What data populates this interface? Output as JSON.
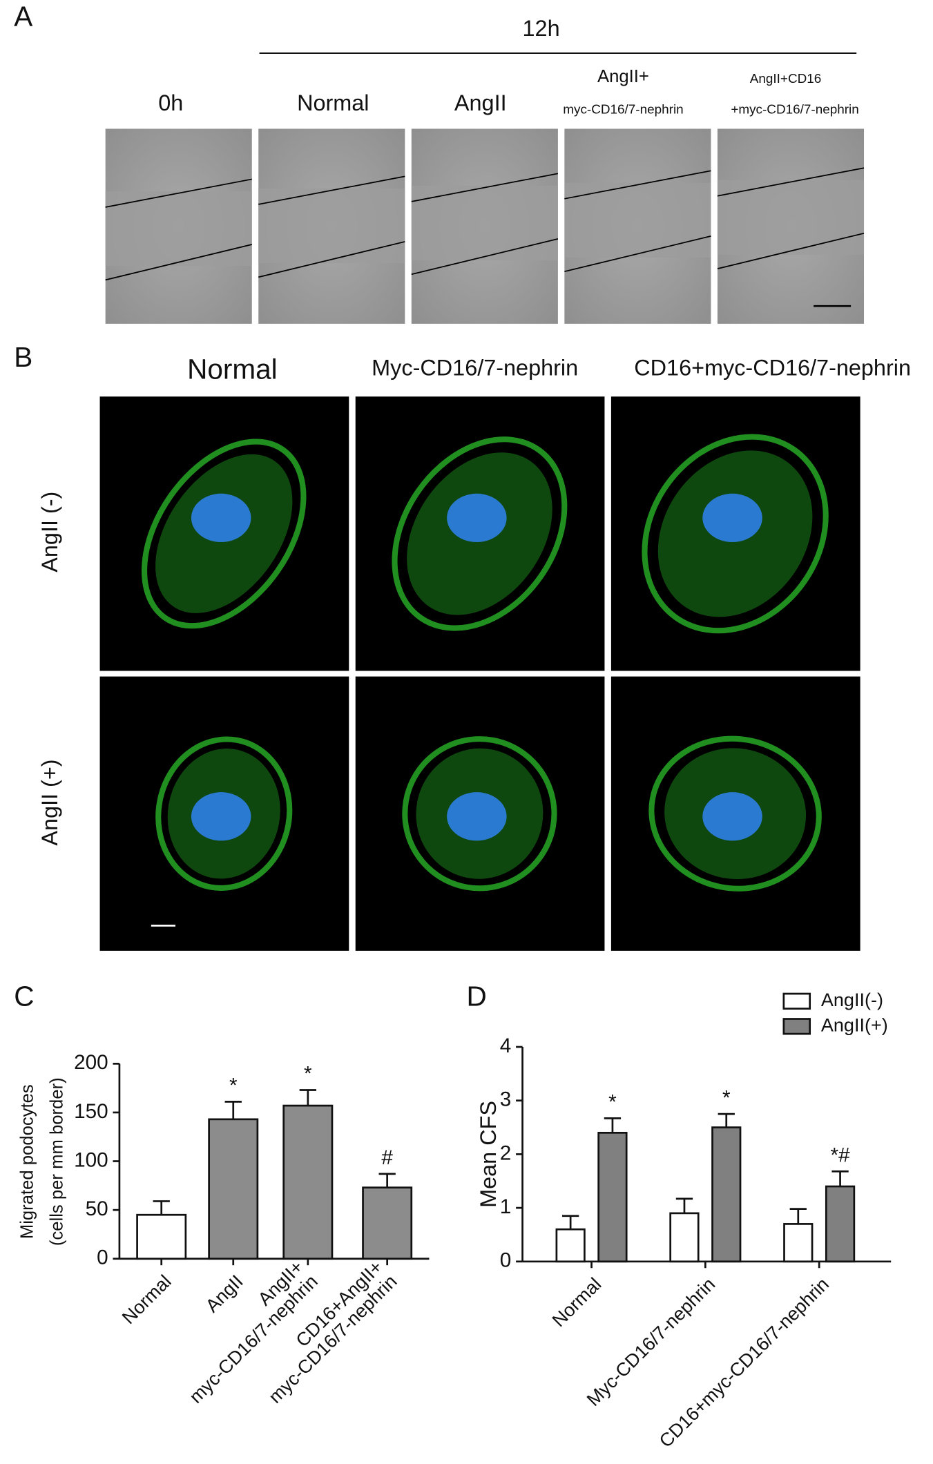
{
  "panels": {
    "a": {
      "label": "A",
      "time": "12h",
      "columns": [
        "0h",
        "Normal",
        "AngII",
        "AngII+",
        "myc-CD16/7-nephrin",
        "AngII+CD16",
        "+myc-CD16/7-nephrin"
      ]
    },
    "b": {
      "label": "B",
      "columns": [
        "Normal",
        "Myc-CD16/7-nephrin",
        "CD16+myc-CD16/7-nephrin"
      ],
      "rows": [
        "AngII (-)",
        "AngII (+)"
      ]
    }
  },
  "chart_data": [
    {
      "type": "bar",
      "panel": "C",
      "ylabel": [
        "Migrated podocytes",
        "(cells per mm border)"
      ],
      "categories": [
        "Normal",
        "AngII",
        "AngII+\nmyc-CD16/7-nephrin",
        "CD16+AngII+\nmyc-CD16/7-nephrin"
      ],
      "values": [
        45,
        143,
        157,
        73
      ],
      "errors": [
        14,
        18,
        16,
        14
      ],
      "colors": [
        "#ffffff",
        "#8c8c8c",
        "#8c8c8c",
        "#8c8c8c"
      ],
      "annotations": [
        null,
        "*",
        "*",
        "#"
      ],
      "ylim": [
        0,
        200
      ],
      "yticks": [
        0,
        50,
        100,
        150,
        200
      ]
    },
    {
      "type": "bar",
      "panel": "D",
      "ylabel": [
        "Mean CFS"
      ],
      "categories": [
        "Normal",
        "Myc-CD16/7-nephrin",
        "CD16+myc-CD16/7-nephrin"
      ],
      "series": [
        {
          "name": "AngII(-)",
          "color": "#ffffff",
          "values": [
            0.6,
            0.9,
            0.7
          ],
          "errors": [
            0.25,
            0.27,
            0.28
          ]
        },
        {
          "name": "AngII(+)",
          "color": "#808080",
          "values": [
            2.4,
            2.5,
            1.4
          ],
          "errors": [
            0.27,
            0.25,
            0.28
          ],
          "annotations": [
            "*",
            "*",
            "*#"
          ]
        }
      ],
      "ylim": [
        0,
        4
      ],
      "yticks": [
        0,
        1,
        2,
        3,
        4
      ],
      "legend": "top-right"
    }
  ]
}
